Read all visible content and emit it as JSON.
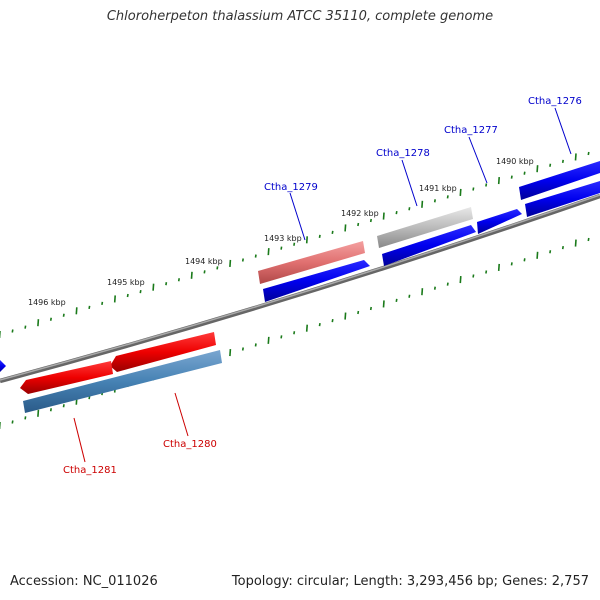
{
  "title": "Chloroherpeton thalassium ATCC 35110, complete genome",
  "footer": {
    "accession": "Accession: NC_011026",
    "summary": "Topology: circular; Length: 3,293,456 bp; Genes: 2,757"
  },
  "colors": {
    "forward_gene": "#0000ee",
    "reverse_gene": "#ee0000",
    "highlight_forward": "#4682b4",
    "highlight_reverse": "#e07070",
    "pseudo_gene": "#aaaaaa",
    "scale_tick": "#1a7a1a",
    "backbone": "#888888"
  },
  "scale_labels": [
    "1490 kbp",
    "1491 kbp",
    "1492 kbp",
    "1493 kbp",
    "1494 kbp",
    "1495 kbp",
    "1496 kbp"
  ],
  "gene_labels": [
    {
      "text": "Ctha_1276",
      "color": "#0000cc"
    },
    {
      "text": "Ctha_1277",
      "color": "#0000cc"
    },
    {
      "text": "Ctha_1278",
      "color": "#0000cc"
    },
    {
      "text": "Ctha_1279",
      "color": "#0000cc"
    },
    {
      "text": "Ctha_1280",
      "color": "#cc0000"
    },
    {
      "text": "Ctha_1281",
      "color": "#cc0000"
    }
  ]
}
